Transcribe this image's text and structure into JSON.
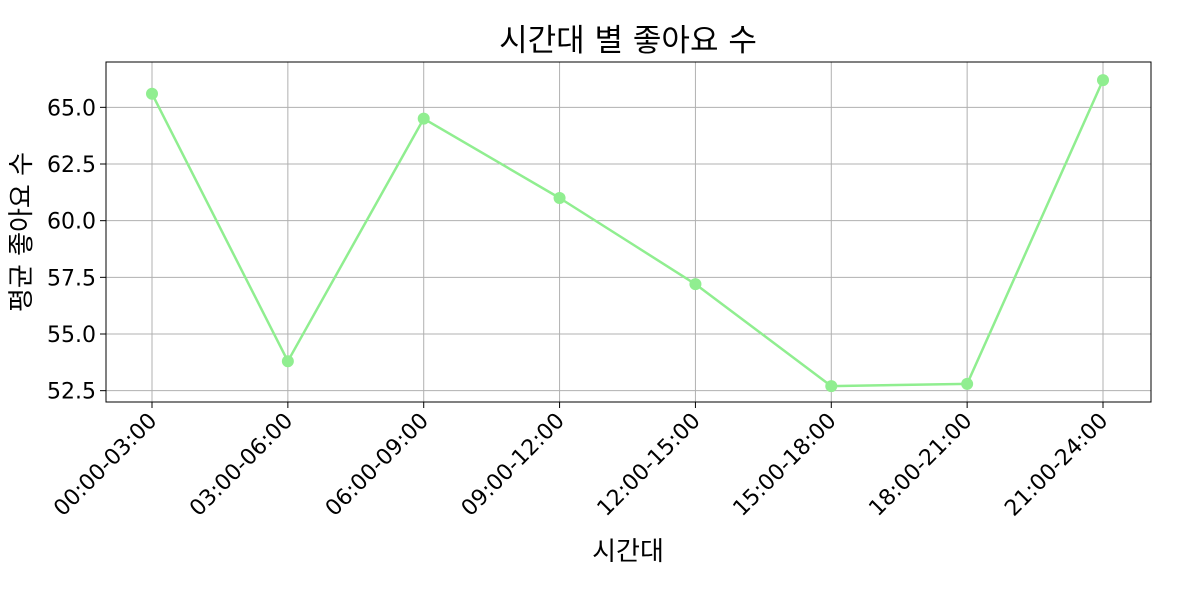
{
  "chart_data": {
    "type": "line",
    "title": "시간대 별 좋아요 수",
    "xlabel": "시간대",
    "ylabel": "평균 좋아요 수",
    "categories": [
      "00:00-03:00",
      "03:00-06:00",
      "06:00-09:00",
      "09:00-12:00",
      "12:00-15:00",
      "15:00-18:00",
      "18:00-21:00",
      "21:00-24:00"
    ],
    "series": [
      {
        "values": [
          65.6,
          53.8,
          64.5,
          61.0,
          57.2,
          52.7,
          52.8,
          66.2
        ]
      }
    ],
    "ylim": [
      52.0,
      67.0
    ],
    "yticks": [
      52.5,
      55.0,
      57.5,
      60.0,
      62.5,
      65.0
    ],
    "ytick_labels": [
      "52.5",
      "55.0",
      "57.5",
      "60.0",
      "62.5",
      "65.0"
    ],
    "grid": true,
    "line_color": "#90ee90",
    "marker": "circle"
  }
}
